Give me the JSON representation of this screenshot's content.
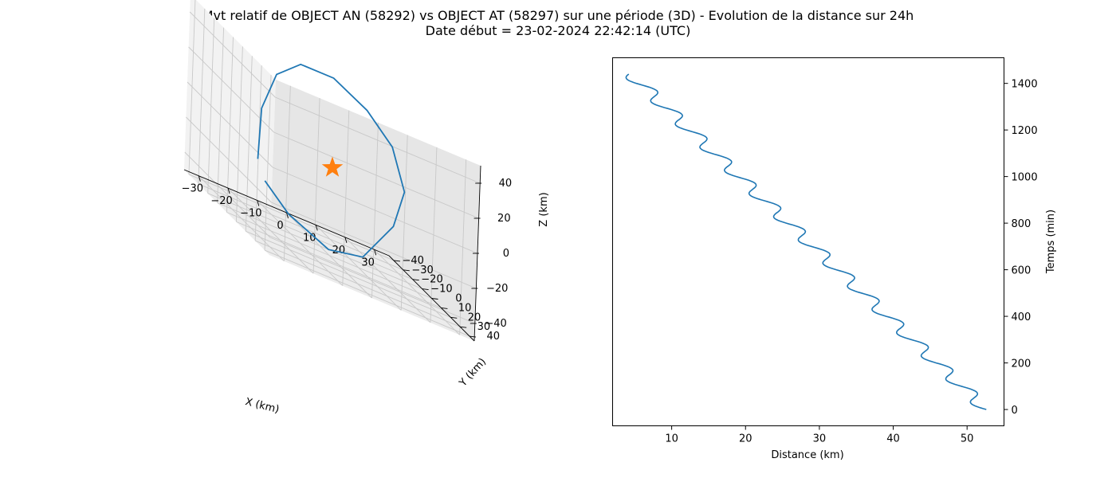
{
  "figure": {
    "title_line1": "Mvt relatif de OBJECT AN (58292) vs OBJECT AT (58297) sur une période (3D) - Evolution de la distance sur 24h",
    "title_line2": "Date début = 23-02-2024 22:42:14 (UTC)"
  },
  "colors": {
    "series": "#1f77b4",
    "marker": "#ff7f0e",
    "pane_left": "#f2f2f2",
    "pane_right": "#e6e6e6",
    "pane_floor": "#ececec",
    "grid": "#c8c8c8"
  },
  "chart_data": [
    {
      "type": "line3d",
      "xlabel": "X (km)",
      "ylabel": "Y (km)",
      "zlabel": "Z (km)",
      "xticks": [
        "−30",
        "−20",
        "−10",
        "0",
        "10",
        "20",
        "30"
      ],
      "yticks": [
        "−40",
        "−30",
        "−20",
        "−10",
        "0",
        "10",
        "20",
        "30",
        "40"
      ],
      "zticks": [
        "40",
        "20",
        "0",
        "−20",
        "−40"
      ],
      "xlim": [
        -35,
        35
      ],
      "ylim": [
        -45,
        45
      ],
      "zlim": [
        -50,
        50
      ],
      "grid": true,
      "marker": {
        "shape": "star",
        "x": 0,
        "y": 0,
        "z": 0
      },
      "series": [
        {
          "orbit": "closed relative orbit",
          "x": [
            -10,
            -5,
            3,
            8,
            12,
            12,
            10,
            6,
            0,
            -6,
            -10,
            -12,
            -12
          ],
          "y": [
            -38,
            -28,
            -10,
            10,
            28,
            38,
            30,
            15,
            -2,
            -18,
            -30,
            -38,
            -40
          ],
          "z": [
            -35,
            -45,
            -50,
            -40,
            -10,
            15,
            35,
            45,
            50,
            45,
            30,
            5,
            -25
          ]
        }
      ]
    },
    {
      "type": "line",
      "xlabel": "Distance (km)",
      "ylabel": "Temps (min)",
      "xlim": [
        2,
        55
      ],
      "ylim": [
        -70,
        1510
      ],
      "xticks": [
        10,
        20,
        30,
        40,
        50
      ],
      "yticks": [
        0,
        200,
        400,
        600,
        800,
        1000,
        1200,
        1400
      ],
      "y_axis_side": "right",
      "grid": false,
      "model": {
        "distance_start_km": 52.6,
        "distance_end_km": 4.4,
        "duration_min": 1440,
        "oscillation_amplitude_km": 1.2,
        "oscillation_period_min": 99.5
      }
    }
  ]
}
